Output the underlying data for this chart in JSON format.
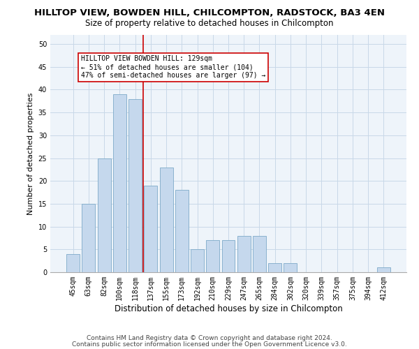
{
  "title": "HILLTOP VIEW, BOWDEN HILL, CHILCOMPTON, RADSTOCK, BA3 4EN",
  "subtitle": "Size of property relative to detached houses in Chilcompton",
  "xlabel": "Distribution of detached houses by size in Chilcompton",
  "ylabel": "Number of detached properties",
  "footnote1": "Contains HM Land Registry data © Crown copyright and database right 2024.",
  "footnote2": "Contains public sector information licensed under the Open Government Licence v3.0.",
  "categories": [
    "45sqm",
    "63sqm",
    "82sqm",
    "100sqm",
    "118sqm",
    "137sqm",
    "155sqm",
    "173sqm",
    "192sqm",
    "210sqm",
    "229sqm",
    "247sqm",
    "265sqm",
    "284sqm",
    "302sqm",
    "320sqm",
    "339sqm",
    "357sqm",
    "375sqm",
    "394sqm",
    "412sqm"
  ],
  "values": [
    4,
    15,
    25,
    39,
    38,
    19,
    23,
    18,
    5,
    7,
    7,
    8,
    8,
    2,
    2,
    0,
    0,
    0,
    0,
    0,
    1
  ],
  "bar_color": "#c5d8ed",
  "bar_edge_color": "#7eaac8",
  "grid_color": "#c8d8e8",
  "background_color": "#eef4fa",
  "annotation_box_text": "HILLTOP VIEW BOWDEN HILL: 129sqm\n← 51% of detached houses are smaller (104)\n47% of semi-detached houses are larger (97) →",
  "vline_position": 4.5,
  "vline_color": "#cc0000",
  "ylim": [
    0,
    52
  ],
  "yticks": [
    0,
    5,
    10,
    15,
    20,
    25,
    30,
    35,
    40,
    45,
    50
  ],
  "title_fontsize": 9.5,
  "subtitle_fontsize": 8.5,
  "xlabel_fontsize": 8.5,
  "ylabel_fontsize": 8,
  "tick_fontsize": 7,
  "annotation_fontsize": 7,
  "footnote_fontsize": 6.5
}
